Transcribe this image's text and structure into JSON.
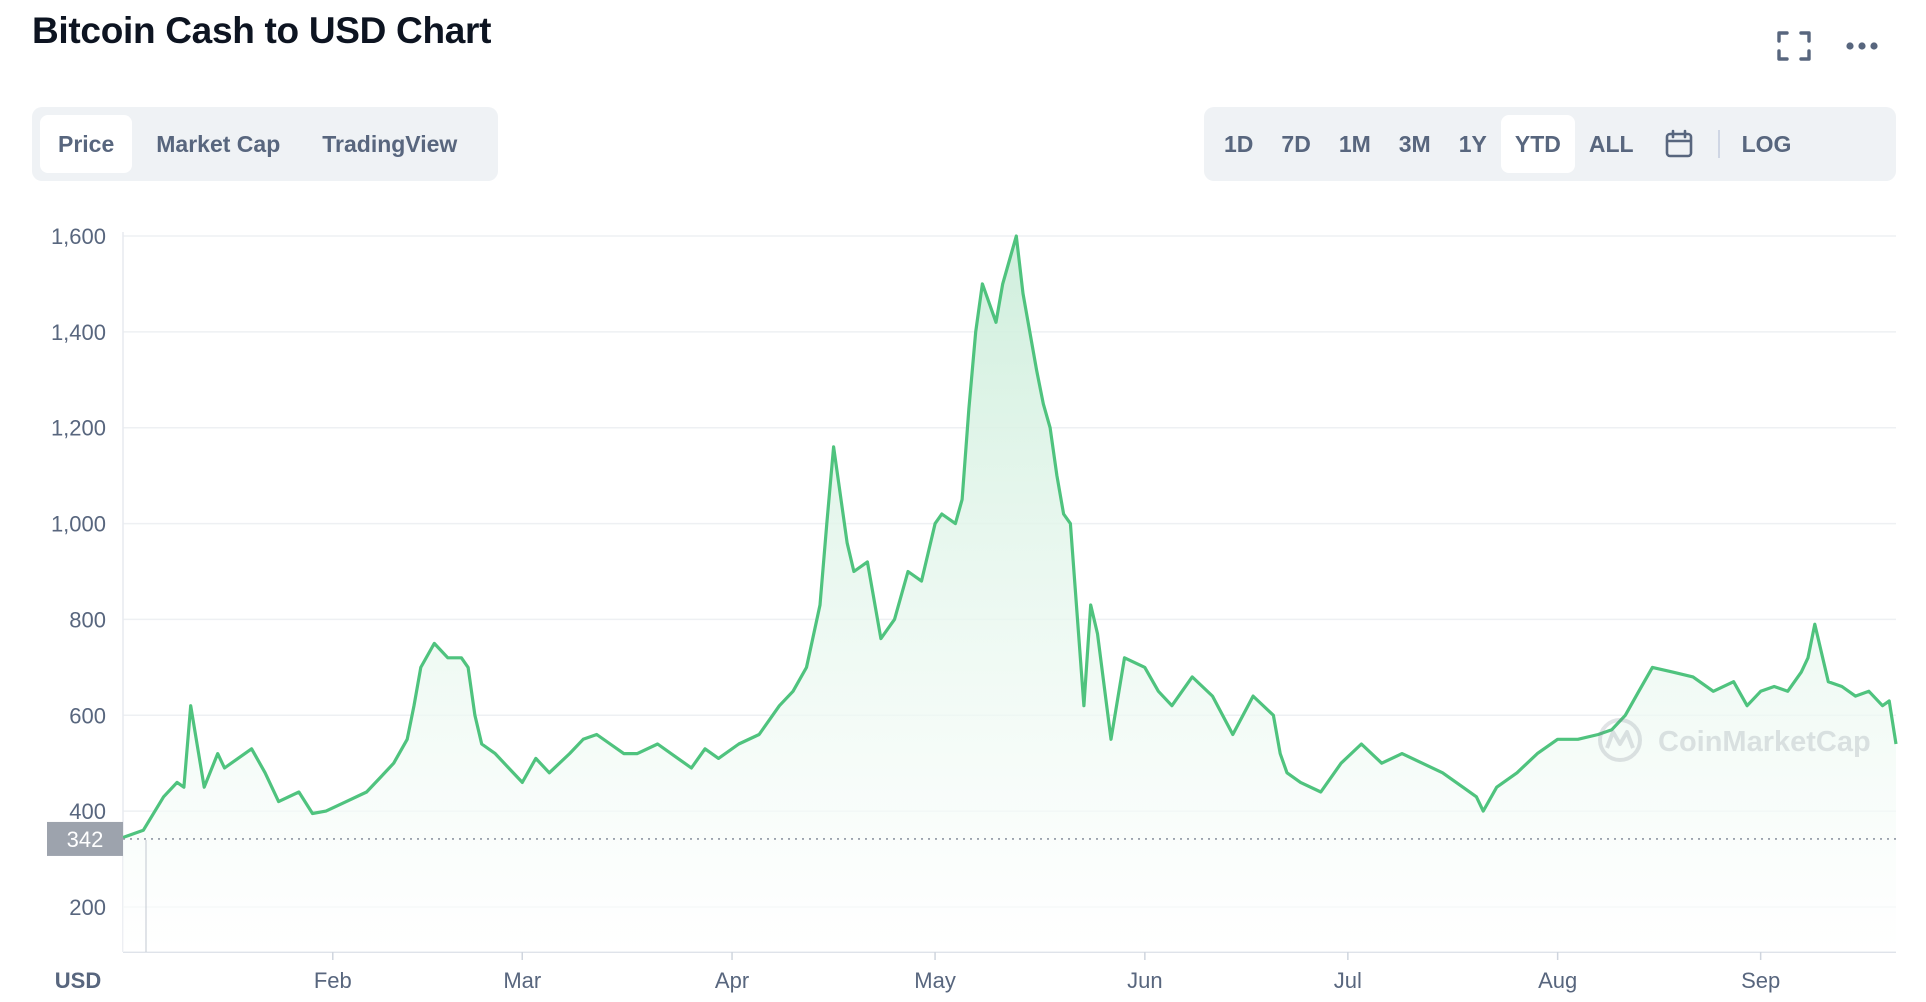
{
  "header": {
    "title": "Bitcoin Cash to USD Chart"
  },
  "icons": {
    "fullscreen": "fullscreen-icon",
    "more": "more-icon",
    "calendar": "calendar-icon",
    "watermark": "coinmarketcap-logo-icon"
  },
  "tabs": [
    {
      "label": "Price",
      "active": true
    },
    {
      "label": "Market Cap",
      "active": false
    },
    {
      "label": "TradingView",
      "active": false
    }
  ],
  "ranges": [
    {
      "label": "1D",
      "active": false
    },
    {
      "label": "7D",
      "active": false
    },
    {
      "label": "1M",
      "active": false
    },
    {
      "label": "3M",
      "active": false
    },
    {
      "label": "1Y",
      "active": false
    },
    {
      "label": "YTD",
      "active": true
    },
    {
      "label": "ALL",
      "active": false
    }
  ],
  "log_label": "LOG",
  "currency_label": "USD",
  "watermark_text": "CoinMarketCap",
  "colors": {
    "line": "#4fc37e",
    "fill_top": "#d4f0de",
    "fill_bottom": "#ffffff",
    "badge": "#9da3ad",
    "grid": "#f0f2f5"
  },
  "chart_data": {
    "type": "area",
    "title": "Bitcoin Cash to USD Chart",
    "ylabel": "USD",
    "ylim": [
      100,
      1600
    ],
    "yticks": [
      200,
      400,
      600,
      800,
      1000,
      1200,
      1400,
      1600
    ],
    "ytick_labels": [
      "200",
      "400",
      "600",
      "800",
      "1,000",
      "1,200",
      "1,400",
      "1,600"
    ],
    "xtick_labels": [
      "Feb",
      "Mar",
      "Apr",
      "May",
      "Jun",
      "Jul",
      "Aug",
      "Sep"
    ],
    "xtick_days": [
      31,
      59,
      90,
      120,
      151,
      181,
      212,
      242
    ],
    "reference_line": {
      "value": 342,
      "label": "342"
    },
    "grid": true,
    "series": [
      {
        "x": [
          "2021-01-01",
          "2021-01-04",
          "2021-01-07",
          "2021-01-09",
          "2021-01-10",
          "2021-01-11",
          "2021-01-13",
          "2021-01-15",
          "2021-01-16",
          "2021-01-18",
          "2021-01-20",
          "2021-01-22",
          "2021-01-24",
          "2021-01-27",
          "2021-01-29",
          "2021-01-31",
          "2021-02-03",
          "2021-02-06",
          "2021-02-08",
          "2021-02-10",
          "2021-02-12",
          "2021-02-13",
          "2021-02-14",
          "2021-02-16",
          "2021-02-18",
          "2021-02-20",
          "2021-02-21",
          "2021-02-22",
          "2021-02-23",
          "2021-02-25",
          "2021-02-27",
          "2021-03-01",
          "2021-03-03",
          "2021-03-05",
          "2021-03-08",
          "2021-03-10",
          "2021-03-12",
          "2021-03-14",
          "2021-03-16",
          "2021-03-18",
          "2021-03-21",
          "2021-03-24",
          "2021-03-26",
          "2021-03-28",
          "2021-03-30",
          "2021-04-02",
          "2021-04-05",
          "2021-04-08",
          "2021-04-10",
          "2021-04-12",
          "2021-04-14",
          "2021-04-15",
          "2021-04-16",
          "2021-04-18",
          "2021-04-19",
          "2021-04-21",
          "2021-04-23",
          "2021-04-25",
          "2021-04-27",
          "2021-04-29",
          "2021-05-01",
          "2021-05-02",
          "2021-05-04",
          "2021-05-05",
          "2021-05-06",
          "2021-05-07",
          "2021-05-08",
          "2021-05-10",
          "2021-05-11",
          "2021-05-12",
          "2021-05-13",
          "2021-05-14",
          "2021-05-16",
          "2021-05-17",
          "2021-05-18",
          "2021-05-19",
          "2021-05-20",
          "2021-05-21",
          "2021-05-23",
          "2021-05-24",
          "2021-05-25",
          "2021-05-27",
          "2021-05-29",
          "2021-06-01",
          "2021-06-03",
          "2021-06-05",
          "2021-06-08",
          "2021-06-11",
          "2021-06-14",
          "2021-06-17",
          "2021-06-20",
          "2021-06-21",
          "2021-06-22",
          "2021-06-24",
          "2021-06-27",
          "2021-06-30",
          "2021-07-03",
          "2021-07-06",
          "2021-07-09",
          "2021-07-12",
          "2021-07-15",
          "2021-07-18",
          "2021-07-20",
          "2021-07-21",
          "2021-07-23",
          "2021-07-26",
          "2021-07-29",
          "2021-08-01",
          "2021-08-04",
          "2021-08-07",
          "2021-08-09",
          "2021-08-11",
          "2021-08-13",
          "2021-08-15",
          "2021-08-18",
          "2021-08-21",
          "2021-08-24",
          "2021-08-27",
          "2021-08-29",
          "2021-08-31",
          "2021-09-02",
          "2021-09-04",
          "2021-09-06",
          "2021-09-07",
          "2021-09-08",
          "2021-09-10",
          "2021-09-12",
          "2021-09-14",
          "2021-09-16",
          "2021-09-18",
          "2021-09-19",
          "2021-09-20"
        ],
        "values": [
          345,
          360,
          430,
          460,
          450,
          620,
          450,
          520,
          490,
          510,
          530,
          480,
          420,
          440,
          395,
          400,
          420,
          440,
          470,
          500,
          550,
          620,
          700,
          750,
          720,
          720,
          700,
          600,
          540,
          520,
          490,
          460,
          510,
          480,
          520,
          550,
          560,
          540,
          520,
          520,
          540,
          510,
          490,
          530,
          510,
          540,
          560,
          620,
          650,
          700,
          830,
          1000,
          1160,
          960,
          900,
          920,
          760,
          800,
          900,
          880,
          1000,
          1020,
          1000,
          1050,
          1240,
          1400,
          1500,
          1420,
          1500,
          1550,
          1600,
          1480,
          1320,
          1250,
          1200,
          1100,
          1020,
          1000,
          620,
          830,
          770,
          550,
          720,
          700,
          650,
          620,
          680,
          640,
          560,
          640,
          600,
          520,
          480,
          460,
          440,
          500,
          540,
          500,
          520,
          500,
          480,
          450,
          430,
          400,
          450,
          480,
          520,
          550,
          550,
          560,
          570,
          600,
          650,
          700,
          690,
          680,
          650,
          670,
          620,
          650,
          660,
          650,
          690,
          720,
          790,
          670,
          660,
          640,
          650,
          620,
          630,
          540
        ]
      }
    ]
  }
}
